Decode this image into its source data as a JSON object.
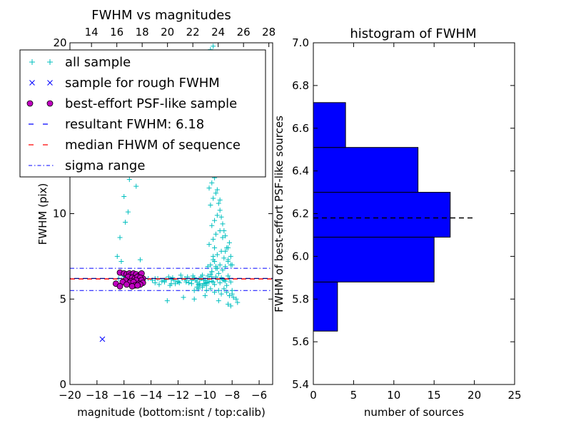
{
  "chart_data": [
    {
      "type": "scatter",
      "title": "FWHM vs magnitudes",
      "xlabel": "magnitude (bottom:isnt / top:calib)",
      "ylabel": "FWHM (pix)",
      "xlim": [
        -20,
        -5
      ],
      "ylim": [
        0,
        20
      ],
      "xticks": [
        -20,
        -18,
        -16,
        -14,
        -12,
        -10,
        -8,
        -6
      ],
      "xtick_labels": [
        "−20",
        "−18",
        "−16",
        "−14",
        "−12",
        "−10",
        "−8",
        "−6"
      ],
      "yticks": [
        0,
        5,
        10
      ],
      "ytick_labels": [
        "0",
        "5",
        "10"
      ],
      "top_axis": {
        "lim": [
          12.3,
          28.3
        ],
        "ticks": [
          14,
          16,
          18,
          20,
          22,
          24,
          26,
          28
        ],
        "labels": [
          "14",
          "16",
          "18",
          "20",
          "22",
          "24",
          "26",
          "28"
        ],
        "top_value": "20"
      },
      "legend": {
        "location": "upper-left",
        "entries": [
          {
            "label": "all sample",
            "marker": "+",
            "color": "#00bfbf"
          },
          {
            "label": "sample for rough FWHM",
            "marker": "x",
            "color": "#0000ff"
          },
          {
            "label": "best-effort PSF-like sample",
            "marker": "o",
            "color": "#bf00bf"
          },
          {
            "label": "resultant FWHM: 6.18",
            "marker": "dashed",
            "color": "#0000ff"
          },
          {
            "label": "median FHWM of sequence",
            "marker": "dashed",
            "color": "#ff0000"
          },
          {
            "label": "sigma range",
            "marker": "dashdot",
            "color": "#0000ff"
          }
        ]
      },
      "lines": {
        "resultant_fwhm": 6.18,
        "median_fwhm": 6.18,
        "sigma_range": [
          5.5,
          6.8
        ]
      },
      "series": [
        {
          "name": "sample for rough FWHM",
          "color": "#0000ff",
          "x": [
            -17.6
          ],
          "y": [
            2.65
          ]
        },
        {
          "name": "best-effort PSF-like sample",
          "color": "#bf00bf",
          "x": [
            -16.3,
            -16.0,
            -15.8,
            -15.6,
            -15.5,
            -15.3,
            -15.1,
            -14.9,
            -14.7,
            -14.6,
            -15.7,
            -15.4,
            -15.2,
            -15.0,
            -14.8,
            -15.9,
            -15.5,
            -15.1,
            -14.7,
            -16.1,
            -15.6,
            -15.3,
            -14.9,
            -14.6,
            -15.8,
            -15.2,
            -14.8,
            -15.4,
            -15.0,
            -16.6,
            -16.3
          ],
          "y": [
            6.55,
            6.5,
            6.45,
            6.5,
            6.4,
            6.5,
            6.45,
            6.35,
            6.5,
            6.2,
            6.3,
            6.25,
            6.2,
            6.3,
            6.25,
            6.1,
            6.05,
            6.1,
            6.1,
            6.0,
            5.95,
            6.0,
            5.9,
            5.95,
            5.85,
            5.8,
            5.85,
            5.75,
            5.8,
            5.9,
            5.75
          ]
        },
        {
          "name": "all sample",
          "color": "#00bfbf",
          "x": [
            -13.9,
            -13.5,
            -13.0,
            -12.5,
            -12.0,
            -11.5,
            -11.0,
            -10.6,
            -10.3,
            -10.0,
            -9.7,
            -9.4,
            -9.1,
            -8.8,
            -8.5,
            -8.2,
            -13.7,
            -13.2,
            -12.7,
            -12.2,
            -11.7,
            -11.2,
            -10.8,
            -10.4,
            -10.1,
            -9.8,
            -9.5,
            -9.2,
            -8.9,
            -8.6,
            -8.3,
            -14.2,
            -13.4,
            -12.9,
            -12.4,
            -11.9,
            -11.4,
            -10.9,
            -10.5,
            -10.2,
            -9.9,
            -9.6,
            -9.3,
            -9.0,
            -8.7,
            -8.4,
            -8.1,
            -10.8,
            -10.5,
            -10.2,
            -9.9,
            -9.6,
            -9.3,
            -9.0,
            -8.8,
            -8.6,
            -8.4,
            -8.2,
            -8.0,
            -7.9,
            -9.5,
            -9.2,
            -8.9,
            -8.7,
            -8.5,
            -8.3,
            -8.1,
            -9.8,
            -9.4,
            -9.1,
            -8.8,
            -8.6,
            -8.4,
            -8.2,
            -8.0,
            -9.7,
            -9.4,
            -9.2,
            -8.9,
            -8.7,
            -8.5,
            -8.3,
            -8.1,
            -9.5,
            -9.3,
            -9.1,
            -8.9,
            -8.7,
            -8.5,
            -8.3,
            -9.6,
            -9.4,
            -9.2,
            -9.0,
            -8.8,
            -8.6,
            -9.7,
            -9.5,
            -9.3,
            -9.1,
            -8.9,
            -9.8,
            -9.6,
            -9.4,
            -9.2,
            -9.0,
            -9.7,
            -9.5,
            -9.3,
            -9.1,
            -9.6,
            -9.4,
            -9.2,
            -9.5,
            -9.3,
            -9.1,
            -9.4,
            -9.2,
            -9.3,
            -9.1,
            -9.6,
            -9.4,
            -9.2,
            -9.5,
            -9.3,
            -9.4,
            -10.4,
            -10.1,
            -9.9,
            -9.7,
            -9.5,
            -10.6,
            -10.3,
            -10.0,
            -9.8,
            -10.5,
            -10.2,
            -10.0,
            -11.0,
            -10.7,
            -10.4,
            -11.3,
            -12.0,
            -12.5,
            -13.0,
            -11.8,
            -12.6,
            -14.5,
            -15.5,
            -16.0,
            -15.8,
            -16.4,
            -16.2,
            -15.9,
            -15.6,
            -14.7,
            -13.7,
            -12.3,
            -11.4,
            -10.9,
            -9.6,
            -9.4,
            -9.3,
            -9.2,
            -9.3,
            -9.5,
            -9.1,
            -8.0,
            -7.7,
            -7.6,
            -8.3,
            -8.1,
            -9.0,
            -10.0,
            -10.8,
            -11.6,
            -12.8,
            -16.3,
            -15.9,
            -15.7,
            -16.5,
            -16.2,
            -14.8,
            -15.1,
            -15.6,
            -16.0
          ],
          "y": [
            6.1,
            6.2,
            6.0,
            6.15,
            6.05,
            6.2,
            6.1,
            6.0,
            6.3,
            6.1,
            6.2,
            6.0,
            6.15,
            6.25,
            6.05,
            6.2,
            5.95,
            6.05,
            6.3,
            5.9,
            6.2,
            5.95,
            6.25,
            6.15,
            5.9,
            6.35,
            6.05,
            6.3,
            5.95,
            6.1,
            6.35,
            6.2,
            5.85,
            6.15,
            6.25,
            5.95,
            6.1,
            6.35,
            5.85,
            6.4,
            5.95,
            6.45,
            5.85,
            6.5,
            6.15,
            5.8,
            6.0,
            5.5,
            5.6,
            5.7,
            5.5,
            5.6,
            5.4,
            5.5,
            5.3,
            5.6,
            5.4,
            5.2,
            5.5,
            5.1,
            6.6,
            6.8,
            7.0,
            6.7,
            6.9,
            7.2,
            7.5,
            6.9,
            7.3,
            7.6,
            7.8,
            7.4,
            8.0,
            8.3,
            7.0,
            8.2,
            8.5,
            8.8,
            9.0,
            8.6,
            7.8,
            7.3,
            7.0,
            9.3,
            9.6,
            9.9,
            10.2,
            9.4,
            8.7,
            8.0,
            10.5,
            10.9,
            11.2,
            10.6,
            9.8,
            9.0,
            11.5,
            11.8,
            12.1,
            11.4,
            10.8,
            12.5,
            12.9,
            13.3,
            13.6,
            12.6,
            14.0,
            14.4,
            14.8,
            13.9,
            15.2,
            15.6,
            16.0,
            16.4,
            16.8,
            17.2,
            17.6,
            18.0,
            18.6,
            19.2,
            19.6,
            18.3,
            16.9,
            15.9,
            14.6,
            19.8,
            5.9,
            6.1,
            5.8,
            6.0,
            6.3,
            5.7,
            6.2,
            5.9,
            6.0,
            5.6,
            5.8,
            6.1,
            5.9,
            6.1,
            5.8,
            6.3,
            6.0,
            5.9,
            6.1,
            6.4,
            5.8,
            6.2,
            6.1,
            6.3,
            6.0,
            6.2,
            6.5,
            6.3,
            6.4,
            6.0,
            6.2,
            6.1,
            6.0,
            6.2,
            7.0,
            7.5,
            8.0,
            6.9,
            7.2,
            6.6,
            6.8,
            5.3,
            5.0,
            4.8,
            4.7,
            4.6,
            4.9,
            5.2,
            5.0,
            5.1,
            4.9,
            8.6,
            9.5,
            10.1,
            7.5,
            7.2,
            7.3,
            11.6,
            12.0,
            11.0
          ]
        }
      ]
    },
    {
      "type": "bar",
      "orientation": "horizontal",
      "title": "histogram of FWHM",
      "xlabel": "number of sources",
      "ylabel": "FWHM of best-effort PSF-like sources",
      "xlim": [
        0,
        25
      ],
      "ylim": [
        5.4,
        7.0
      ],
      "xticks": [
        0,
        5,
        10,
        15,
        20,
        25
      ],
      "xtick_labels": [
        "0",
        "5",
        "10",
        "15",
        "20",
        "25"
      ],
      "yticks": [
        5.4,
        5.6,
        5.8,
        6.0,
        6.2,
        6.4,
        6.6,
        6.8,
        7.0
      ],
      "ytick_labels": [
        "5.4",
        "5.6",
        "5.8",
        "6.0",
        "6.2",
        "6.4",
        "6.6",
        "6.8",
        "7.0"
      ],
      "bins": [
        {
          "from": 5.65,
          "to": 5.88,
          "count": 3
        },
        {
          "from": 5.88,
          "to": 6.09,
          "count": 15
        },
        {
          "from": 6.09,
          "to": 6.3,
          "count": 17
        },
        {
          "from": 6.3,
          "to": 6.51,
          "count": 13
        },
        {
          "from": 6.51,
          "to": 6.72,
          "count": 4
        }
      ],
      "bar_color": "#0000ff",
      "reference_line": {
        "y": 6.18,
        "x_end": 20,
        "style": "dashed",
        "color": "#000000"
      }
    }
  ]
}
